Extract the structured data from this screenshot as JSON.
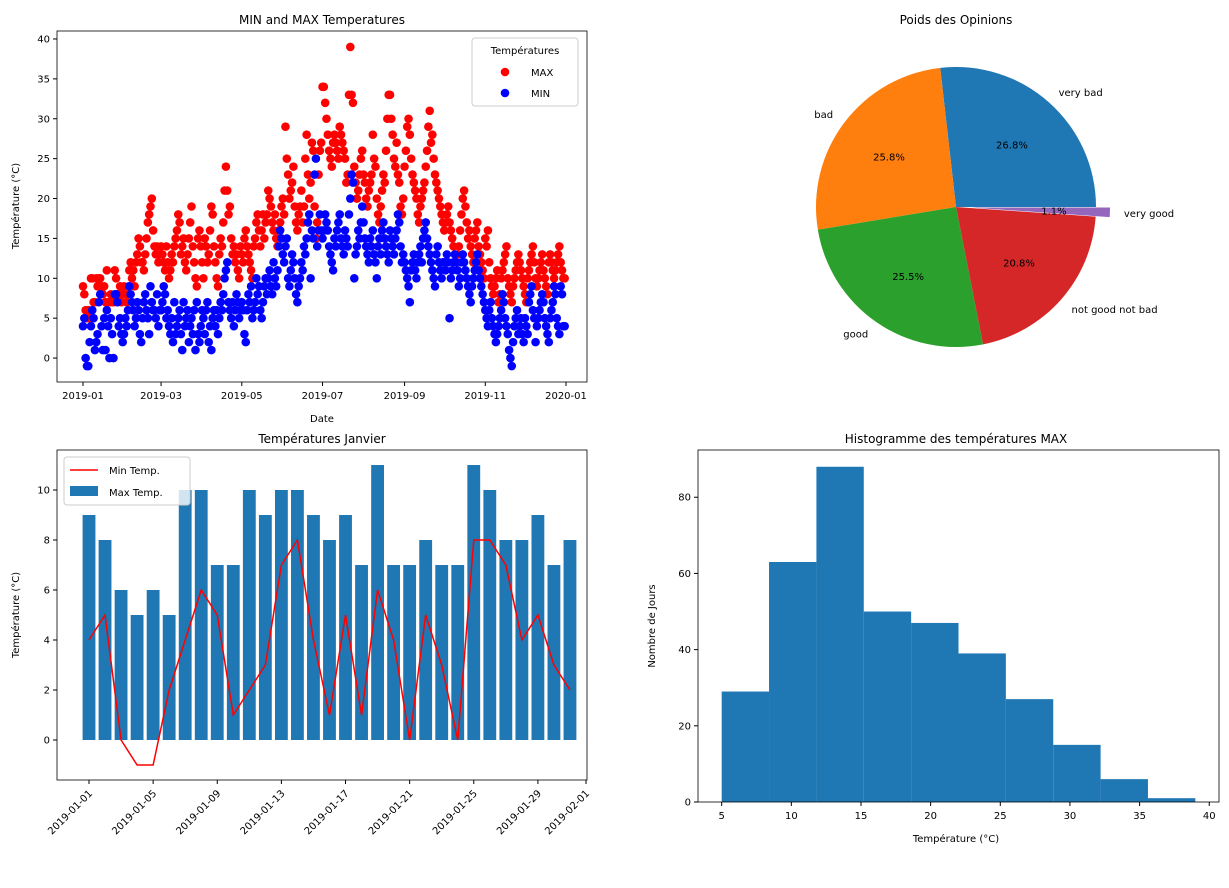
{
  "chart_data": [
    {
      "type": "scatter",
      "title": "MIN and MAX Temperatures",
      "xlabel": "Date",
      "ylabel": "Température (°C)",
      "x_range": [
        "2019-01-01",
        "2019-12-31"
      ],
      "xticks": [
        "2019-01",
        "2019-03",
        "2019-05",
        "2019-07",
        "2019-09",
        "2019-11",
        "2020-01"
      ],
      "xtick_dates": [
        "2019-01-01",
        "2019-03-01",
        "2019-05-01",
        "2019-07-01",
        "2019-09-01",
        "2019-11-01",
        "2020-01-01"
      ],
      "ylim": [
        -3,
        41
      ],
      "yticks": [
        0,
        5,
        10,
        15,
        20,
        25,
        30,
        35,
        40
      ],
      "legend": {
        "title": "Températures",
        "placement": "top-right"
      },
      "series": [
        {
          "name": "MAX",
          "color": "#ff0000",
          "monthly_daily_values": [
            [
              9,
              8,
              6,
              5,
              6,
              5,
              10,
              10,
              7,
              7,
              10,
              9,
              10,
              10,
              9,
              8,
              9,
              7,
              11,
              7,
              7,
              8,
              7,
              7,
              11,
              10,
              8,
              8,
              9,
              7,
              8
            ],
            [
              9,
              8,
              7,
              8,
              11,
              12,
              10,
              11,
              9,
              12,
              13,
              15,
              14,
              12,
              12,
              11,
              13,
              15,
              17,
              18,
              19,
              20,
              16,
              14,
              13,
              14,
              12,
              13
            ],
            [
              14,
              13,
              12,
              11,
              14,
              12,
              10,
              11,
              13,
              12,
              14,
              15,
              16,
              18,
              17,
              13,
              14,
              15,
              12,
              11,
              13,
              15,
              17,
              19,
              14,
              12,
              10,
              9,
              15,
              16,
              14
            ],
            [
              12,
              10,
              15,
              14,
              12,
              13,
              16,
              19,
              18,
              14,
              12,
              10,
              9,
              13,
              15,
              14,
              17,
              21,
              24,
              21,
              18,
              19,
              15,
              13,
              14,
              12,
              13,
              11,
              10,
              14
            ],
            [
              13,
              12,
              15,
              16,
              14,
              13,
              12,
              11,
              10,
              14,
              15,
              17,
              18,
              16,
              14,
              16,
              18,
              15,
              17,
              18,
              21,
              20,
              19,
              17,
              16,
              18,
              15,
              14,
              16,
              17,
              19
            ],
            [
              20,
              18,
              29,
              25,
              23,
              20,
              21,
              22,
              24,
              19,
              17,
              16,
              18,
              19,
              21,
              17,
              19,
              25,
              28,
              23,
              20,
              22,
              27,
              26,
              19,
              15,
              17,
              23,
              26,
              27
            ],
            [
              34,
              34,
              32,
              30,
              28,
              26,
              25,
              24,
              27,
              28,
              27,
              26,
              25,
              29,
              28,
              27,
              26,
              25,
              22,
              23,
              33,
              39,
              33,
              32,
              24,
              22,
              20,
              21,
              23,
              25,
              26
            ],
            [
              23,
              22,
              20,
              19,
              21,
              22,
              23,
              28,
              25,
              24,
              20,
              18,
              17,
              19,
              21,
              23,
              22,
              26,
              30,
              33,
              33,
              30,
              28,
              25,
              24,
              27,
              23,
              22,
              19,
              18,
              20
            ],
            [
              24,
              26,
              29,
              30,
              28,
              25,
              23,
              22,
              21,
              20,
              18,
              17,
              19,
              20,
              21,
              22,
              24,
              26,
              29,
              31,
              27,
              28,
              25,
              23,
              22,
              21,
              20,
              19,
              18,
              17
            ],
            [
              16,
              17,
              18,
              19,
              17,
              16,
              15,
              14,
              13,
              12,
              13,
              14,
              16,
              18,
              20,
              21,
              19,
              17,
              15,
              16,
              14,
              13,
              12,
              15,
              16,
              17,
              14,
              13,
              12,
              11,
              10
            ],
            [
              15,
              14,
              16,
              12,
              10,
              9,
              8,
              9,
              10,
              11,
              7,
              8,
              10,
              11,
              12,
              13,
              14,
              10,
              9,
              8,
              7,
              9,
              10,
              11,
              12,
              13,
              12,
              11,
              10,
              9
            ],
            [
              8,
              7,
              10,
              11,
              12,
              13,
              14,
              12,
              10,
              9,
              10,
              11,
              12,
              13,
              11,
              10,
              9,
              8,
              12,
              13,
              12,
              11,
              10,
              11,
              12,
              13,
              14,
              12,
              11,
              10,
              10
            ]
          ]
        },
        {
          "name": "MIN",
          "color": "#0000ff",
          "monthly_daily_values": [
            [
              4,
              5,
              0,
              -1,
              -1,
              2,
              4,
              6,
              5,
              1,
              2,
              3,
              7,
              8,
              4,
              1,
              5,
              1,
              6,
              4,
              0,
              5,
              3,
              0,
              8,
              8,
              7,
              4,
              5,
              3,
              2
            ],
            [
              3,
              5,
              4,
              6,
              9,
              8,
              7,
              6,
              4,
              5,
              7,
              6,
              3,
              2,
              5,
              7,
              8,
              6,
              5,
              3,
              9,
              7,
              6,
              6,
              5,
              8,
              4,
              6
            ],
            [
              6,
              7,
              9,
              8,
              5,
              6,
              4,
              3,
              5,
              2,
              7,
              3,
              4,
              5,
              6,
              3,
              1,
              7,
              4,
              5,
              6,
              2,
              4,
              5,
              3,
              6,
              1,
              7,
              3,
              2,
              4
            ],
            [
              6,
              5,
              3,
              6,
              7,
              2,
              4,
              1,
              5,
              6,
              4,
              6,
              3,
              5,
              7,
              6,
              8,
              10,
              11,
              12,
              7,
              6,
              5,
              7,
              4,
              6,
              8,
              7,
              5,
              6
            ],
            [
              7,
              6,
              3,
              2,
              6,
              8,
              7,
              9,
              5,
              6,
              7,
              10,
              8,
              9,
              6,
              5,
              7,
              9,
              10,
              8,
              10,
              11,
              9,
              8,
              12,
              10,
              9,
              11,
              14,
              16,
              15
            ],
            [
              13,
              12,
              14,
              15,
              10,
              9,
              11,
              13,
              12,
              10,
              8,
              7,
              9,
              10,
              12,
              11,
              14,
              13,
              15,
              17,
              18,
              10,
              16,
              15,
              23,
              25,
              14,
              16,
              18,
              16
            ],
            [
              15,
              16,
              18,
              17,
              16,
              14,
              13,
              12,
              11,
              15,
              14,
              16,
              17,
              18,
              15,
              14,
              13,
              16,
              15,
              14,
              18,
              20,
              23,
              22,
              10,
              13,
              14,
              16,
              15,
              17,
              19
            ],
            [
              17,
              15,
              14,
              13,
              12,
              15,
              14,
              16,
              13,
              12,
              10,
              14,
              15,
              13,
              16,
              17,
              15,
              14,
              13,
              12,
              16,
              15,
              14,
              13,
              15,
              16,
              18,
              17,
              14,
              12,
              13
            ],
            [
              12,
              11,
              10,
              9,
              7,
              11,
              12,
              13,
              11,
              10,
              12,
              13,
              14,
              12,
              15,
              16,
              17,
              15,
              14,
              13,
              12,
              11,
              10,
              9,
              13,
              14,
              12,
              11,
              10,
              12
            ],
            [
              12,
              11,
              13,
              12,
              5,
              10,
              11,
              12,
              13,
              12,
              11,
              9,
              10,
              12,
              13,
              12,
              11,
              10,
              9,
              8,
              7,
              9,
              10,
              11,
              12,
              13,
              11,
              10,
              9,
              8,
              7
            ],
            [
              6,
              5,
              4,
              6,
              7,
              5,
              4,
              3,
              2,
              3,
              4,
              5,
              6,
              8,
              7,
              5,
              4,
              3,
              1,
              0,
              -1,
              2,
              4,
              5,
              6,
              3,
              4,
              5,
              3,
              2
            ],
            [
              5,
              4,
              3,
              7,
              8,
              9,
              6,
              5,
              2,
              4,
              5,
              6,
              7,
              8,
              7,
              5,
              4,
              3,
              2,
              5,
              6,
              7,
              9,
              8,
              5,
              4,
              3,
              9,
              8,
              4,
              4
            ]
          ]
        }
      ]
    },
    {
      "type": "pie",
      "title": "Poids des Opinions",
      "labels": [
        "very bad",
        "bad",
        "good",
        "not good not bad",
        "very good"
      ],
      "values": [
        26.8,
        25.8,
        25.5,
        20.8,
        1.1
      ],
      "pct_labels": [
        "26.8%",
        "25.8%",
        "25.5%",
        "20.8%",
        "1.1%"
      ],
      "colors": [
        "#1f77b4",
        "#ff7f0e",
        "#2ca02c",
        "#d62728",
        "#9467bd"
      ],
      "explode": [
        0,
        0,
        0,
        0,
        0.1
      ],
      "start_angle": 0
    },
    {
      "type": "bar",
      "title": "Températures Janvier",
      "ylabel": "Température (°C)",
      "x_dates": "2019-01-01 to 2019-01-31",
      "xticks": [
        "2019-01-01",
        "2019-01-05",
        "2019-01-09",
        "2019-01-13",
        "2019-01-17",
        "2019-01-21",
        "2019-01-25",
        "2019-01-29",
        "2019-02-01"
      ],
      "xtick_day_index": [
        0,
        4,
        8,
        12,
        16,
        20,
        24,
        28,
        31
      ],
      "ylim": [
        -1.6,
        11.6
      ],
      "yticks": [
        0,
        2,
        4,
        6,
        8,
        10
      ],
      "legend": {
        "placement": "top-left"
      },
      "series": [
        {
          "name": "Min Temp.",
          "kind": "line",
          "color": "#ff0000",
          "values": [
            4,
            5,
            0,
            -1,
            -1,
            2,
            4,
            6,
            5,
            1,
            2,
            3,
            7,
            8,
            4,
            1,
            5,
            1,
            6,
            4,
            0,
            5,
            3,
            0,
            8,
            8,
            7,
            4,
            5,
            3,
            2
          ]
        },
        {
          "name": "Max Temp.",
          "kind": "bar",
          "color": "#1f77b4",
          "values": [
            9,
            8,
            6,
            5,
            6,
            5,
            10,
            10,
            7,
            7,
            10,
            9,
            10,
            10,
            9,
            8,
            9,
            7,
            11,
            7,
            7,
            8,
            7,
            7,
            11,
            10,
            8,
            8,
            9,
            7,
            8
          ]
        }
      ]
    },
    {
      "type": "histogram",
      "title": "Histogramme des températures MAX",
      "xlabel": "Température (°C)",
      "ylabel": "Nombre de Jours",
      "bin_edges": [
        5,
        8.4,
        11.8,
        15.2,
        18.6,
        22,
        25.4,
        28.8,
        32.2,
        35.6,
        39
      ],
      "counts": [
        29,
        63,
        88,
        50,
        47,
        39,
        27,
        15,
        6,
        1
      ],
      "color": "#1f77b4",
      "xlim": [
        3.3,
        40.7
      ],
      "ylim": [
        0,
        92.4
      ],
      "xticks": [
        5,
        10,
        15,
        20,
        25,
        30,
        35,
        40
      ],
      "yticks": [
        0,
        20,
        40,
        60,
        80
      ]
    }
  ]
}
